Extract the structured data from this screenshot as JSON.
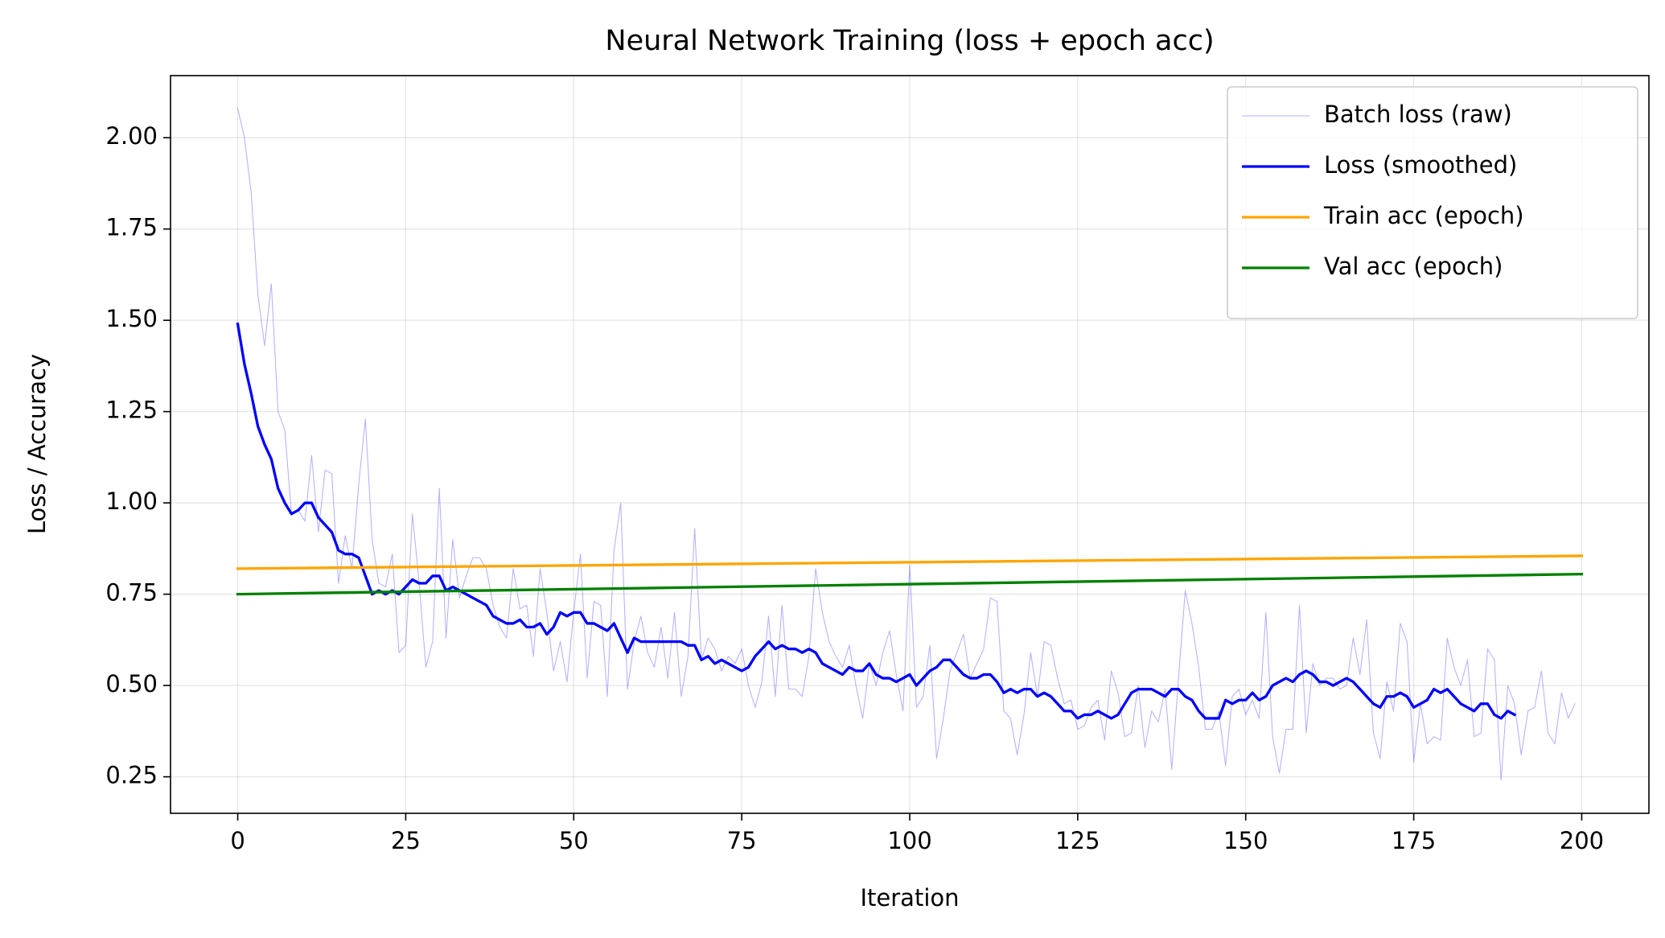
{
  "chart_data": {
    "type": "line",
    "title": "Neural Network Training (loss + epoch acc)",
    "x_label": "Iteration",
    "y_label": "Loss / Accuracy",
    "x": [
      0,
      1,
      2,
      3,
      4,
      5,
      6,
      7,
      8,
      9,
      10,
      11,
      12,
      13,
      14,
      15,
      16,
      17,
      18,
      19,
      20,
      21,
      22,
      23,
      24,
      25,
      26,
      27,
      28,
      29,
      30,
      31,
      32,
      33,
      34,
      35,
      36,
      37,
      38,
      39,
      40,
      41,
      42,
      43,
      44,
      45,
      46,
      47,
      48,
      49,
      50,
      51,
      52,
      53,
      54,
      55,
      56,
      57,
      58,
      59,
      60,
      61,
      62,
      63,
      64,
      65,
      66,
      67,
      68,
      69,
      70,
      71,
      72,
      73,
      74,
      75,
      76,
      77,
      78,
      79,
      80,
      81,
      82,
      83,
      84,
      85,
      86,
      87,
      88,
      89,
      90,
      91,
      92,
      93,
      94,
      95,
      96,
      97,
      98,
      99,
      100,
      101,
      102,
      103,
      104,
      105,
      106,
      107,
      108,
      109,
      110,
      111,
      112,
      113,
      114,
      115,
      116,
      117,
      118,
      119,
      120,
      121,
      122,
      123,
      124,
      125,
      126,
      127,
      128,
      129,
      130,
      131,
      132,
      133,
      134,
      135,
      136,
      137,
      138,
      139,
      140,
      141,
      142,
      143,
      144,
      145,
      146,
      147,
      148,
      149,
      150,
      151,
      152,
      153,
      154,
      155,
      156,
      157,
      158,
      159,
      160,
      161,
      162,
      163,
      164,
      165,
      166,
      167,
      168,
      169,
      170,
      171,
      172,
      173,
      174,
      175,
      176,
      177,
      178,
      179,
      180,
      181,
      182,
      183,
      184,
      185,
      186,
      187,
      188,
      189,
      190,
      191,
      192,
      193,
      194,
      195,
      196,
      197,
      198,
      199
    ],
    "series": [
      {
        "name": "Batch loss (raw)",
        "color": "#0000ff",
        "width": 0.8,
        "opacity": 0.3,
        "values": [
          2.08,
          2.0,
          1.85,
          1.57,
          1.43,
          1.6,
          1.25,
          1.2,
          0.97,
          0.98,
          0.95,
          1.13,
          0.92,
          1.09,
          1.08,
          0.78,
          0.91,
          0.82,
          1.05,
          1.23,
          0.9,
          0.78,
          0.77,
          0.86,
          0.59,
          0.61,
          0.97,
          0.78,
          0.55,
          0.62,
          1.04,
          0.63,
          0.9,
          0.74,
          0.8,
          0.85,
          0.85,
          0.82,
          0.72,
          0.66,
          0.63,
          0.82,
          0.71,
          0.72,
          0.58,
          0.82,
          0.7,
          0.54,
          0.62,
          0.51,
          0.7,
          0.86,
          0.52,
          0.73,
          0.72,
          0.47,
          0.87,
          1.0,
          0.49,
          0.62,
          0.69,
          0.59,
          0.55,
          0.66,
          0.52,
          0.7,
          0.47,
          0.58,
          0.93,
          0.57,
          0.63,
          0.6,
          0.54,
          0.58,
          0.56,
          0.6,
          0.5,
          0.44,
          0.51,
          0.69,
          0.47,
          0.72,
          0.49,
          0.49,
          0.47,
          0.58,
          0.82,
          0.7,
          0.62,
          0.58,
          0.55,
          0.61,
          0.5,
          0.41,
          0.56,
          0.5,
          0.59,
          0.65,
          0.53,
          0.43,
          0.83,
          0.44,
          0.47,
          0.61,
          0.3,
          0.41,
          0.54,
          0.59,
          0.64,
          0.52,
          0.56,
          0.6,
          0.74,
          0.73,
          0.43,
          0.41,
          0.31,
          0.42,
          0.59,
          0.47,
          0.62,
          0.61,
          0.52,
          0.45,
          0.46,
          0.38,
          0.39,
          0.44,
          0.46,
          0.35,
          0.54,
          0.48,
          0.36,
          0.37,
          0.5,
          0.33,
          0.43,
          0.4,
          0.49,
          0.27,
          0.52,
          0.76,
          0.67,
          0.55,
          0.38,
          0.38,
          0.43,
          0.28,
          0.47,
          0.49,
          0.42,
          0.46,
          0.41,
          0.7,
          0.36,
          0.26,
          0.38,
          0.38,
          0.72,
          0.37,
          0.56,
          0.5,
          0.52,
          0.52,
          0.49,
          0.5,
          0.63,
          0.53,
          0.68,
          0.37,
          0.3,
          0.51,
          0.43,
          0.67,
          0.62,
          0.29,
          0.45,
          0.34,
          0.36,
          0.35,
          0.63,
          0.55,
          0.5,
          0.57,
          0.36,
          0.37,
          0.6,
          0.57,
          0.24,
          0.5,
          0.45,
          0.31,
          0.43,
          0.44,
          0.54,
          0.37,
          0.34,
          0.48,
          0.41,
          0.45
        ]
      },
      {
        "name": "Loss (smoothed)",
        "color": "#0000ff",
        "width": 2.5,
        "opacity": 1,
        "values": [
          1.49,
          1.38,
          1.3,
          1.21,
          1.16,
          1.12,
          1.04,
          1.0,
          0.97,
          0.98,
          1.0,
          1.0,
          0.96,
          0.94,
          0.92,
          0.87,
          0.86,
          0.86,
          0.85,
          0.8,
          0.75,
          0.76,
          0.75,
          0.76,
          0.75,
          0.77,
          0.79,
          0.78,
          0.78,
          0.8,
          0.8,
          0.76,
          0.77,
          0.76,
          0.75,
          0.74,
          0.73,
          0.72,
          0.69,
          0.68,
          0.67,
          0.67,
          0.68,
          0.66,
          0.66,
          0.67,
          0.64,
          0.66,
          0.7,
          0.69,
          0.7,
          0.7,
          0.67,
          0.67,
          0.66,
          0.65,
          0.67,
          0.63,
          0.59,
          0.63,
          0.62,
          0.62,
          0.62,
          0.62,
          0.62,
          0.62,
          0.62,
          0.61,
          0.61,
          0.57,
          0.58,
          0.56,
          0.57,
          0.56,
          0.55,
          0.54,
          0.55,
          0.58,
          0.6,
          0.62,
          0.6,
          0.61,
          0.6,
          0.6,
          0.59,
          0.6,
          0.59,
          0.56,
          0.55,
          0.54,
          0.53,
          0.55,
          0.54,
          0.54,
          0.56,
          0.53,
          0.52,
          0.52,
          0.51,
          0.52,
          0.53,
          0.5,
          0.52,
          0.54,
          0.55,
          0.57,
          0.57,
          0.55,
          0.53,
          0.52,
          0.52,
          0.53,
          0.53,
          0.51,
          0.48,
          0.49,
          0.48,
          0.49,
          0.49,
          0.47,
          0.48,
          0.47,
          0.45,
          0.43,
          0.43,
          0.41,
          0.42,
          0.42,
          0.43,
          0.42,
          0.41,
          0.42,
          0.45,
          0.48,
          0.49,
          0.49,
          0.49,
          0.48,
          0.47,
          0.49,
          0.49,
          0.47,
          0.46,
          0.43,
          0.41,
          0.41,
          0.41,
          0.46,
          0.45,
          0.46,
          0.46,
          0.48,
          0.46,
          0.47,
          0.5,
          0.51,
          0.52,
          0.51,
          0.53,
          0.54,
          0.53,
          0.51,
          0.51,
          0.5,
          0.51,
          0.52,
          0.51,
          0.49,
          0.47,
          0.45,
          0.44,
          0.47,
          0.47,
          0.48,
          0.47,
          0.44,
          0.45,
          0.46,
          0.49,
          0.48,
          0.49,
          0.47,
          0.45,
          0.44,
          0.43,
          0.45,
          0.45,
          0.42,
          0.41,
          0.43,
          0.42,
          null,
          null,
          null,
          null,
          null,
          null,
          null,
          null,
          null
        ]
      },
      {
        "name": "Train acc (epoch)",
        "color": "#ffa500",
        "width": 2.5,
        "opacity": 1,
        "x": [
          0,
          200
        ],
        "values": [
          0.82,
          0.855
        ]
      },
      {
        "name": "Val acc (epoch)",
        "color": "#008000",
        "width": 2.5,
        "opacity": 1,
        "x": [
          0,
          200
        ],
        "values": [
          0.75,
          0.805
        ]
      }
    ],
    "xlim": [
      -10,
      210
    ],
    "ylim": [
      0.15,
      2.17
    ],
    "xticks": [
      0,
      25,
      50,
      75,
      100,
      125,
      150,
      175,
      200
    ],
    "yticks": [
      {
        "value": 0.25,
        "label": "0.25"
      },
      {
        "value": 0.5,
        "label": "0.50"
      },
      {
        "value": 0.75,
        "label": "0.75"
      },
      {
        "value": 1,
        "label": "1.00"
      },
      {
        "value": 1.25,
        "label": "1.25"
      },
      {
        "value": 1.5,
        "label": "1.50"
      },
      {
        "value": 1.75,
        "label": "1.75"
      },
      {
        "value": 2,
        "label": "2.00"
      }
    ],
    "grid": true,
    "legend": "upper right"
  }
}
